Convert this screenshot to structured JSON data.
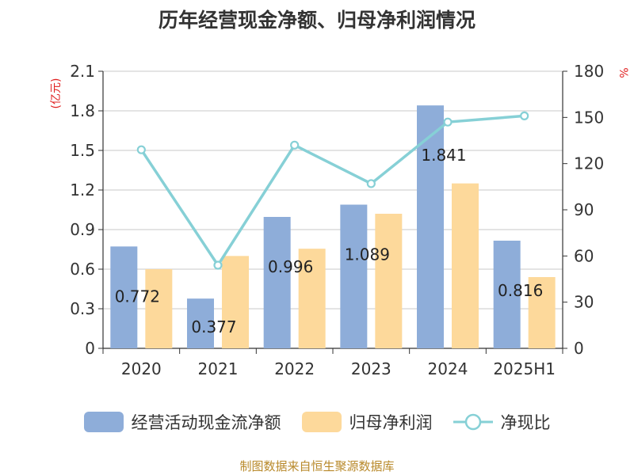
{
  "title": "历年经营现金净额、归母净利润情况",
  "source": "制图数据来自恒生聚源数据库",
  "colors": {
    "bar1": "#8eadd9",
    "bar2": "#fdd99b",
    "line": "#86d0d6",
    "unit": "#e02020"
  },
  "chart_data": {
    "type": "bar",
    "title": "历年经营现金净额、归母净利润情况",
    "categories": [
      "2020",
      "2021",
      "2022",
      "2023",
      "2024",
      "2025H1"
    ],
    "y_left": {
      "unit": "(亿元)",
      "ticks": [
        "0",
        "0.3",
        "0.6",
        "0.9",
        "1.2",
        "1.5",
        "1.8",
        "2.1"
      ],
      "ylim": [
        0,
        2.1
      ]
    },
    "y_right": {
      "unit": "%",
      "ticks": [
        "0",
        "30",
        "60",
        "90",
        "120",
        "150",
        "180"
      ],
      "ylim": [
        0,
        180
      ]
    },
    "grid": true,
    "legend_position": "bottom",
    "series": [
      {
        "name": "经营活动现金流净额",
        "type": "bar",
        "axis": "left",
        "values": [
          0.772,
          0.377,
          0.996,
          1.089,
          1.841,
          0.816
        ],
        "labels": [
          "0.772",
          "0.377",
          "0.996",
          "1.089",
          "1.841",
          "0.816"
        ]
      },
      {
        "name": "归母净利润",
        "type": "bar",
        "axis": "left",
        "values": [
          0.6,
          0.7,
          0.755,
          1.02,
          1.25,
          0.54
        ]
      },
      {
        "name": "净现比",
        "type": "line",
        "axis": "right",
        "values": [
          129,
          54,
          132,
          107,
          147,
          151
        ]
      }
    ]
  }
}
